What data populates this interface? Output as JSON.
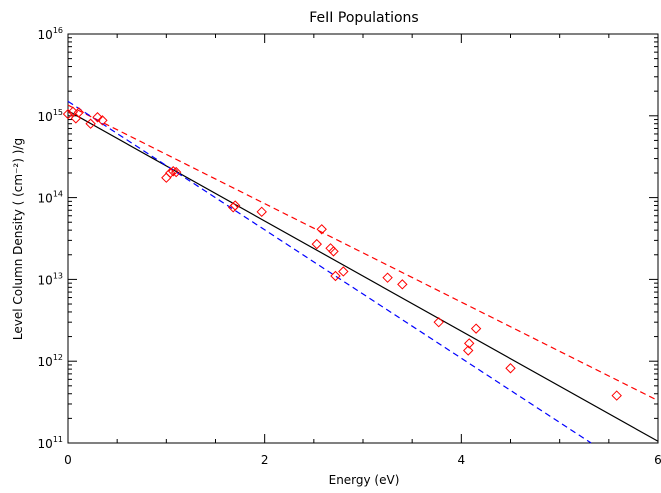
{
  "chart_data": {
    "type": "scatter",
    "title": "FeII Populations",
    "xlabel": "Energy (eV)",
    "ylabel": "Level Column Density ( (cm⁻²) )/g",
    "xlim": [
      0,
      6
    ],
    "ylim": [
      100000000000.0,
      1e+16
    ],
    "yscale": "log",
    "x_ticks": [
      0,
      2,
      4,
      6
    ],
    "x_tick_labels": [
      "0",
      "2",
      "4",
      "6"
    ],
    "y_ticks": [
      100000000000.0,
      1000000000000.0,
      10000000000000.0,
      100000000000000.0,
      1000000000000000.0,
      1e+16
    ],
    "y_tick_labels": [
      {
        "base": "10",
        "exp": "11"
      },
      {
        "base": "10",
        "exp": "12"
      },
      {
        "base": "10",
        "exp": "13"
      },
      {
        "base": "10",
        "exp": "14"
      },
      {
        "base": "10",
        "exp": "15"
      },
      {
        "base": "10",
        "exp": "16"
      }
    ],
    "grid": false,
    "points": {
      "marker": "diamond",
      "color": "#ff0000",
      "x": [
        0.0,
        0.05,
        0.08,
        0.11,
        0.23,
        0.3,
        0.35,
        1.0,
        1.04,
        1.07,
        1.1,
        1.68,
        1.7,
        1.97,
        2.53,
        2.58,
        2.67,
        2.7,
        2.72,
        2.8,
        3.25,
        3.4,
        3.77,
        4.07,
        4.08,
        4.15,
        4.5,
        5.58
      ],
      "y": [
        1050000000000000.0,
        1120000000000000.0,
        930000000000000.0,
        1100000000000000.0,
        800000000000000.0,
        960000000000000.0,
        880000000000000.0,
        175000000000000.0,
        200000000000000.0,
        210000000000000.0,
        205000000000000.0,
        76000000000000.0,
        80000000000000.0,
        67000000000000.0,
        27000000000000.0,
        41000000000000.0,
        24000000000000.0,
        22000000000000.0,
        11000000000000.0,
        12500000000000.0,
        10500000000000.0,
        8700000000000.0,
        3000000000000.0,
        1350000000000.0,
        1650000000000.0,
        2500000000000.0,
        820000000000.0,
        380000000000.0
      ]
    },
    "lines": [
      {
        "color": "#000000",
        "dash": "solid",
        "x": [
          0,
          6
        ],
        "y": [
          1150000000000000.0,
          105000000000.0
        ]
      },
      {
        "color": "#ff0000",
        "dash": "dashed",
        "x": [
          0,
          6
        ],
        "y": [
          1350000000000000.0,
          330000000000.0
        ]
      },
      {
        "color": "#0000ff",
        "dash": "dashed",
        "x": [
          0,
          5.32
        ],
        "y": [
          1500000000000000.0,
          100000000000.0
        ]
      }
    ]
  }
}
